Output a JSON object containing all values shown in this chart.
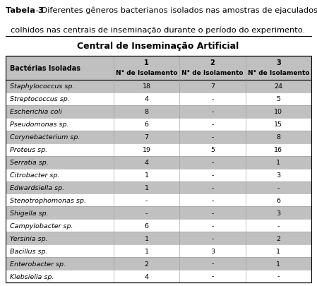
{
  "title_line1_bold": "Tabela 3",
  "title_line1_rest": " - Diferentes gêneros bacterianos isolados nas amostras de ejaculados",
  "title_line2": "colhidos nas centrais de inseminação durante o período do experimento.",
  "section_header": "Central de Inseminação Artificial",
  "col_headers_line1": [
    "Bactérias Isoladas",
    "1",
    "2",
    "3"
  ],
  "col_headers_line2": [
    "",
    "N° de Isolamento",
    "N° de Isolamento",
    "N° de Isolamento"
  ],
  "rows": [
    [
      "Staphylococcus sp.",
      "18",
      "7",
      "24"
    ],
    [
      "Streptococcus sp.",
      "4",
      "-",
      "5"
    ],
    [
      "Escherichia coli",
      "8",
      "-",
      "10"
    ],
    [
      "Pseudomonas sp.",
      "6",
      "-",
      "15"
    ],
    [
      "Corynebacterium sp.",
      "7",
      "-",
      "8"
    ],
    [
      "Proteus sp.",
      "19",
      "5",
      "16"
    ],
    [
      "Serratia sp.",
      "4",
      "-",
      "1"
    ],
    [
      "Citrobacter sp.",
      "1",
      "-",
      "3"
    ],
    [
      "Edwardsiella sp.",
      "1",
      "-",
      "-"
    ],
    [
      "Stenotrophomonas sp.",
      "-",
      "-",
      "6"
    ],
    [
      "Shigella sp.",
      "-",
      "-",
      "3"
    ],
    [
      "Campylobacter sp.",
      "6",
      "-",
      "-"
    ],
    [
      "Yersinia sp.",
      "1",
      "-",
      "2"
    ],
    [
      "Bacillus sp.",
      "1",
      "3",
      "1"
    ],
    [
      "Enterobacter sp.",
      "2",
      "-",
      "1"
    ],
    [
      "Klebsiella sp.",
      "4",
      "-",
      "-"
    ]
  ],
  "shaded_rows": [
    0,
    2,
    4,
    6,
    8,
    10,
    12,
    14
  ],
  "bg_color": "#ffffff",
  "shade_color": "#c0c0c0",
  "header_shade_color": "#c0c0c0",
  "figsize": [
    4.49,
    4.06
  ],
  "dpi": 100
}
